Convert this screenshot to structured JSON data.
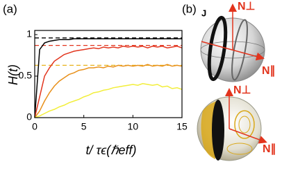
{
  "chart_data": {
    "type": "line",
    "title": "(a)",
    "xlabel": "t/ τϵ(ℏeff)",
    "ylabel": "H(t)",
    "x": [
      0,
      0.5,
      1,
      1.5,
      2,
      2.5,
      3,
      3.5,
      4,
      4.5,
      5,
      5.5,
      6,
      6.5,
      7,
      7.5,
      8,
      8.5,
      9,
      9.5,
      10,
      10.5,
      11,
      11.5,
      12,
      12.5,
      13,
      13.5,
      14,
      14.5,
      15
    ],
    "series": [
      {
        "color": "#000000",
        "values": [
          0,
          0.82,
          0.9,
          0.92,
          0.93,
          0.94,
          0.94,
          0.94,
          0.95,
          0.95,
          0.95,
          0.95,
          0.95,
          0.95,
          0.95,
          0.95,
          0.95,
          0.95,
          0.95,
          0.95,
          0.95,
          0.95,
          0.95,
          0.95,
          0.95,
          0.95,
          0.95,
          0.95,
          0.95,
          0.95,
          0.95
        ]
      },
      {
        "color": "#e2341d",
        "values": [
          0,
          0.25,
          0.5,
          0.6,
          0.68,
          0.72,
          0.76,
          0.78,
          0.8,
          0.81,
          0.82,
          0.83,
          0.84,
          0.83,
          0.85,
          0.84,
          0.85,
          0.84,
          0.86,
          0.85,
          0.86,
          0.85,
          0.86,
          0.84,
          0.86,
          0.85,
          0.86,
          0.84,
          0.85,
          0.86,
          0.84
        ]
      },
      {
        "color": "#e8901a",
        "values": [
          0,
          0.08,
          0.2,
          0.3,
          0.38,
          0.44,
          0.48,
          0.52,
          0.54,
          0.57,
          0.58,
          0.6,
          0.6,
          0.61,
          0.6,
          0.62,
          0.61,
          0.63,
          0.62,
          0.63,
          0.62,
          0.63,
          0.62,
          0.64,
          0.62,
          0.63,
          0.62,
          0.64,
          0.62,
          0.63,
          0.62
        ]
      },
      {
        "color": "#f2ee3a",
        "values": [
          0,
          0.02,
          0.05,
          0.08,
          0.1,
          0.13,
          0.15,
          0.18,
          0.2,
          0.22,
          0.25,
          0.27,
          0.3,
          0.31,
          0.33,
          0.34,
          0.36,
          0.37,
          0.38,
          0.39,
          0.4,
          0.39,
          0.41,
          0.4,
          0.39,
          0.4,
          0.37,
          0.38,
          0.35,
          0.36,
          0.34
        ]
      }
    ],
    "reference_lines": [
      {
        "value": 0.96,
        "color": "#000000"
      },
      {
        "value": 0.87,
        "color": "#e2341d"
      },
      {
        "value": 0.63,
        "color": "#e8b21a"
      }
    ],
    "xlim": [
      0,
      15
    ],
    "ylim": [
      0,
      1.05
    ],
    "xticks": [
      0,
      5,
      10,
      15
    ],
    "yticks": [
      0,
      0.5,
      1
    ]
  },
  "panel_b": {
    "label": "(b)",
    "top": {
      "j": "J",
      "n_perp": "N⊥",
      "n_par": "N∥"
    },
    "bottom": {
      "n_perp": "N⊥",
      "n_par": "N∥"
    }
  }
}
